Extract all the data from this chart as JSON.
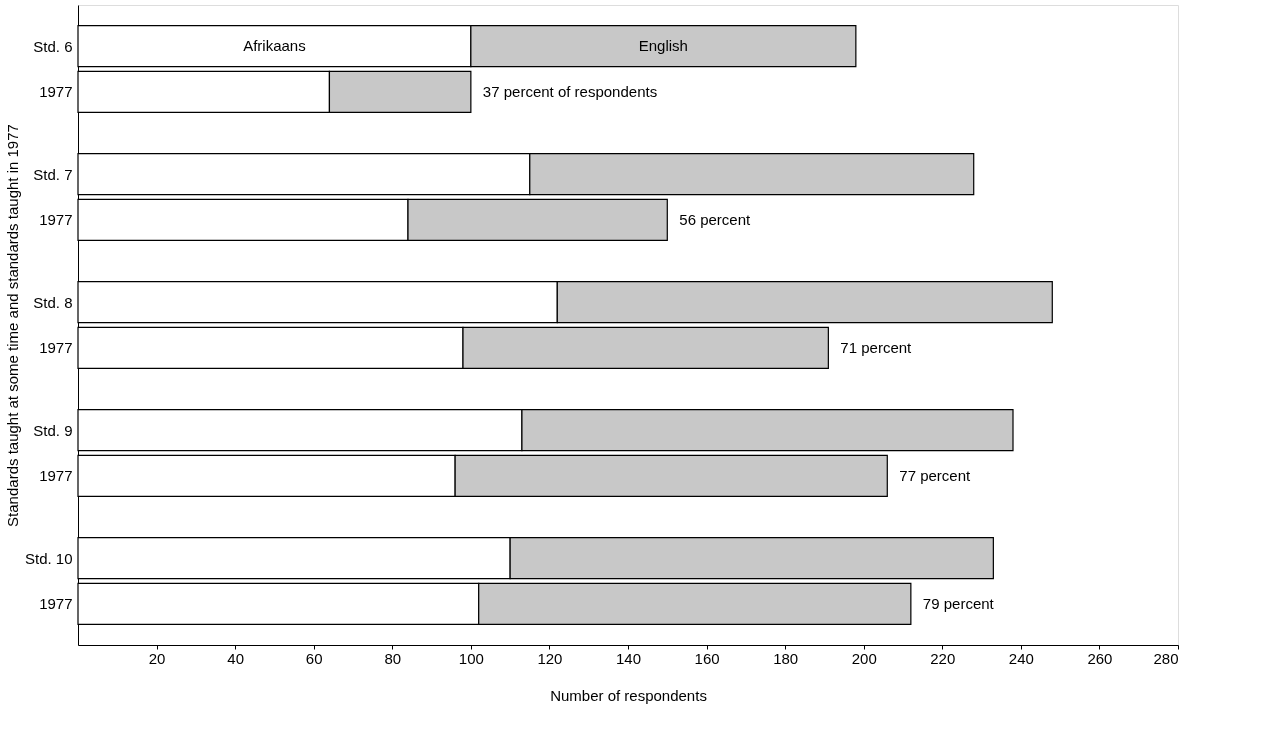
{
  "chart_data": {
    "type": "bar",
    "orientation": "horizontal",
    "stacked": true,
    "ylabel": "Standards taught at some time and standards taught in 1977",
    "xlabel": "Number of respondents",
    "categories": [
      "Std. 6",
      "1977",
      "Std. 7",
      "1977",
      "Std. 8",
      "1977",
      "Std. 9",
      "1977",
      "Std. 10",
      "1977"
    ],
    "series": [
      {
        "name": "Afrikaans",
        "color": "#ffffff",
        "values": [
          100,
          64,
          115,
          84,
          122,
          98,
          113,
          96,
          110,
          102
        ]
      },
      {
        "name": "English",
        "color": "#c8c8c8",
        "values": [
          98,
          36,
          113,
          66,
          126,
          93,
          125,
          110,
          123,
          110
        ]
      }
    ],
    "xlim": [
      0,
      280
    ],
    "xticks": [
      20,
      40,
      60,
      80,
      100,
      120,
      140,
      160,
      180,
      200,
      220,
      240,
      260,
      280
    ],
    "grid": false,
    "legend": false,
    "annotations": [
      "37 percent of respondents",
      "56 percent",
      "71 percent",
      "77 percent",
      "79 percent"
    ]
  }
}
